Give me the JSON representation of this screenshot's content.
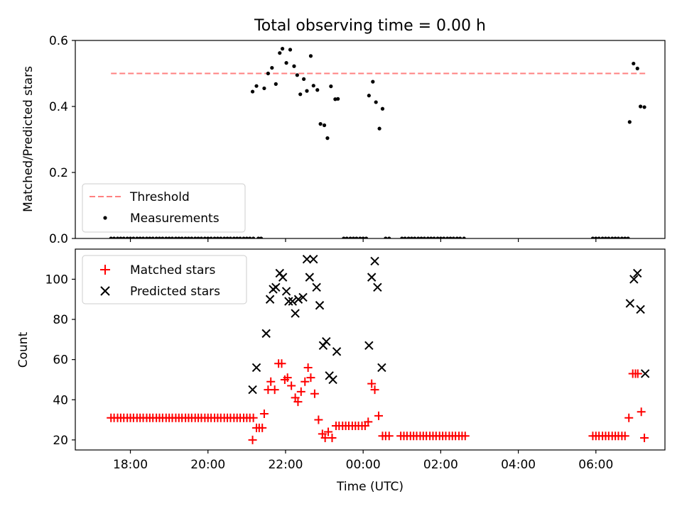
{
  "chart_data": [
    {
      "type": "scatter",
      "title": "Total observing time = 0.00 h",
      "xlabel": "",
      "ylabel": "Matched/Predicted stars",
      "ylim": [
        0,
        0.6
      ],
      "xlim_hours": [
        16.58,
        31.78
      ],
      "yticks": [
        0.0,
        0.2,
        0.4,
        0.6
      ],
      "ytick_labels": [
        "0.0",
        "0.2",
        "0.4",
        "0.6"
      ],
      "legend_position": "lower-left",
      "threshold": {
        "name": "Threshold",
        "value": 0.5,
        "x_range_hours": [
          17.5,
          31.27
        ],
        "color": "#ff8080"
      },
      "series": [
        {
          "name": "Measurements",
          "color": "#000000",
          "marker": "dot",
          "points": [
            [
              21.15,
              0.445
            ],
            [
              21.25,
              0.462
            ],
            [
              21.45,
              0.455
            ],
            [
              21.55,
              0.5
            ],
            [
              21.65,
              0.517
            ],
            [
              21.75,
              0.468
            ],
            [
              21.85,
              0.562
            ],
            [
              21.92,
              0.575
            ],
            [
              22.02,
              0.532
            ],
            [
              22.12,
              0.572
            ],
            [
              22.22,
              0.522
            ],
            [
              22.3,
              0.495
            ],
            [
              22.38,
              0.437
            ],
            [
              22.47,
              0.483
            ],
            [
              22.55,
              0.447
            ],
            [
              22.65,
              0.553
            ],
            [
              22.72,
              0.463
            ],
            [
              22.82,
              0.45
            ],
            [
              22.9,
              0.347
            ],
            [
              23.0,
              0.343
            ],
            [
              23.08,
              0.304
            ],
            [
              23.17,
              0.461
            ],
            [
              23.28,
              0.422
            ],
            [
              23.35,
              0.423
            ],
            [
              24.15,
              0.433
            ],
            [
              24.25,
              0.475
            ],
            [
              24.33,
              0.413
            ],
            [
              24.42,
              0.333
            ],
            [
              24.5,
              0.393
            ],
            [
              30.87,
              0.353
            ],
            [
              30.97,
              0.53
            ],
            [
              31.07,
              0.515
            ],
            [
              31.15,
              0.4
            ],
            [
              31.25,
              0.398
            ]
          ],
          "zero_points_hours": [
            17.5,
            17.58,
            17.67,
            17.75,
            17.83,
            17.92,
            18.0,
            18.08,
            18.17,
            18.25,
            18.33,
            18.42,
            18.5,
            18.58,
            18.67,
            18.75,
            18.83,
            18.92,
            19.0,
            19.08,
            19.17,
            19.25,
            19.33,
            19.42,
            19.5,
            19.58,
            19.67,
            19.75,
            19.83,
            19.92,
            20.0,
            20.08,
            20.17,
            20.25,
            20.33,
            20.42,
            20.5,
            20.58,
            20.67,
            20.75,
            20.83,
            20.92,
            21.0,
            21.08,
            21.17,
            21.3,
            21.37,
            23.5,
            23.58,
            23.67,
            23.75,
            23.83,
            23.92,
            24.0,
            24.08,
            24.58,
            24.67,
            25.0,
            25.08,
            25.17,
            25.25,
            25.33,
            25.42,
            25.5,
            25.58,
            25.67,
            25.75,
            25.83,
            25.92,
            26.0,
            26.08,
            26.17,
            26.25,
            26.33,
            26.42,
            26.5,
            26.6,
            29.92,
            30.0,
            30.08,
            30.17,
            30.25,
            30.33,
            30.42,
            30.5,
            30.58,
            30.67,
            30.75,
            30.83
          ]
        }
      ]
    },
    {
      "type": "scatter",
      "title": "",
      "xlabel": "Time (UTC)",
      "ylabel": "Count",
      "ylim": [
        15,
        115
      ],
      "xlim_hours": [
        16.58,
        31.78
      ],
      "yticks": [
        20,
        40,
        60,
        80,
        100
      ],
      "ytick_labels": [
        "20",
        "40",
        "60",
        "80",
        "100"
      ],
      "xticks_hours": [
        18,
        20,
        22,
        24,
        26,
        28,
        30
      ],
      "xtick_labels": [
        "18:00",
        "20:00",
        "22:00",
        "00:00",
        "02:00",
        "04:00",
        "06:00"
      ],
      "legend_position": "upper-left",
      "series": [
        {
          "name": "Matched stars",
          "color": "#ff0000",
          "marker": "plus",
          "points": [
            [
              17.5,
              31
            ],
            [
              17.58,
              31
            ],
            [
              17.67,
              31
            ],
            [
              17.75,
              31
            ],
            [
              17.83,
              31
            ],
            [
              17.92,
              31
            ],
            [
              18.0,
              31
            ],
            [
              18.08,
              31
            ],
            [
              18.17,
              31
            ],
            [
              18.25,
              31
            ],
            [
              18.33,
              31
            ],
            [
              18.42,
              31
            ],
            [
              18.5,
              31
            ],
            [
              18.58,
              31
            ],
            [
              18.67,
              31
            ],
            [
              18.75,
              31
            ],
            [
              18.83,
              31
            ],
            [
              18.92,
              31
            ],
            [
              19.0,
              31
            ],
            [
              19.08,
              31
            ],
            [
              19.17,
              31
            ],
            [
              19.25,
              31
            ],
            [
              19.33,
              31
            ],
            [
              19.42,
              31
            ],
            [
              19.5,
              31
            ],
            [
              19.58,
              31
            ],
            [
              19.67,
              31
            ],
            [
              19.75,
              31
            ],
            [
              19.83,
              31
            ],
            [
              19.92,
              31
            ],
            [
              20.0,
              31
            ],
            [
              20.08,
              31
            ],
            [
              20.17,
              31
            ],
            [
              20.25,
              31
            ],
            [
              20.33,
              31
            ],
            [
              20.42,
              31
            ],
            [
              20.5,
              31
            ],
            [
              20.58,
              31
            ],
            [
              20.67,
              31
            ],
            [
              20.75,
              31
            ],
            [
              20.83,
              31
            ],
            [
              20.92,
              31
            ],
            [
              21.0,
              31
            ],
            [
              21.08,
              31
            ],
            [
              21.17,
              31
            ],
            [
              21.15,
              20
            ],
            [
              21.25,
              26
            ],
            [
              21.32,
              26
            ],
            [
              21.4,
              26
            ],
            [
              21.45,
              33
            ],
            [
              21.55,
              45
            ],
            [
              21.62,
              49
            ],
            [
              21.72,
              45
            ],
            [
              21.82,
              58
            ],
            [
              21.9,
              58
            ],
            [
              21.98,
              50
            ],
            [
              22.05,
              51
            ],
            [
              22.15,
              47
            ],
            [
              22.25,
              41
            ],
            [
              22.32,
              39
            ],
            [
              22.4,
              44
            ],
            [
              22.5,
              49
            ],
            [
              22.58,
              56
            ],
            [
              22.65,
              51
            ],
            [
              22.75,
              43
            ],
            [
              22.85,
              30
            ],
            [
              22.95,
              23
            ],
            [
              23.02,
              21
            ],
            [
              23.1,
              24
            ],
            [
              23.2,
              21
            ],
            [
              23.3,
              27
            ],
            [
              23.38,
              27
            ],
            [
              23.47,
              27
            ],
            [
              23.55,
              27
            ],
            [
              23.63,
              27
            ],
            [
              23.72,
              27
            ],
            [
              23.8,
              27
            ],
            [
              23.88,
              27
            ],
            [
              23.97,
              27
            ],
            [
              24.05,
              27
            ],
            [
              24.13,
              29
            ],
            [
              24.22,
              48
            ],
            [
              24.3,
              45
            ],
            [
              24.4,
              32
            ],
            [
              24.5,
              22
            ],
            [
              24.58,
              22
            ],
            [
              24.67,
              22
            ],
            [
              24.97,
              22
            ],
            [
              25.05,
              22
            ],
            [
              25.13,
              22
            ],
            [
              25.22,
              22
            ],
            [
              25.3,
              22
            ],
            [
              25.38,
              22
            ],
            [
              25.47,
              22
            ],
            [
              25.55,
              22
            ],
            [
              25.63,
              22
            ],
            [
              25.72,
              22
            ],
            [
              25.8,
              22
            ],
            [
              25.88,
              22
            ],
            [
              25.97,
              22
            ],
            [
              26.05,
              22
            ],
            [
              26.13,
              22
            ],
            [
              26.22,
              22
            ],
            [
              26.3,
              22
            ],
            [
              26.38,
              22
            ],
            [
              26.47,
              22
            ],
            [
              26.55,
              22
            ],
            [
              26.63,
              22
            ],
            [
              29.92,
              22
            ],
            [
              30.0,
              22
            ],
            [
              30.08,
              22
            ],
            [
              30.17,
              22
            ],
            [
              30.25,
              22
            ],
            [
              30.33,
              22
            ],
            [
              30.42,
              22
            ],
            [
              30.5,
              22
            ],
            [
              30.58,
              22
            ],
            [
              30.67,
              22
            ],
            [
              30.75,
              22
            ],
            [
              30.85,
              31
            ],
            [
              30.95,
              53
            ],
            [
              31.02,
              53
            ],
            [
              31.08,
              53
            ],
            [
              31.17,
              34
            ],
            [
              31.25,
              21
            ]
          ]
        },
        {
          "name": "Predicted stars",
          "color": "#000000",
          "marker": "x",
          "points": [
            [
              21.15,
              45
            ],
            [
              21.25,
              56
            ],
            [
              21.5,
              73
            ],
            [
              21.6,
              90
            ],
            [
              21.68,
              95
            ],
            [
              21.75,
              96
            ],
            [
              21.85,
              103
            ],
            [
              21.93,
              101
            ],
            [
              22.02,
              94
            ],
            [
              22.08,
              89
            ],
            [
              22.18,
              89
            ],
            [
              22.25,
              83
            ],
            [
              22.33,
              90
            ],
            [
              22.45,
              91
            ],
            [
              22.55,
              110
            ],
            [
              22.62,
              101
            ],
            [
              22.72,
              110
            ],
            [
              22.8,
              96
            ],
            [
              22.88,
              87
            ],
            [
              22.97,
              67
            ],
            [
              23.05,
              69
            ],
            [
              23.13,
              52
            ],
            [
              23.22,
              50
            ],
            [
              23.32,
              64
            ],
            [
              24.15,
              67
            ],
            [
              24.22,
              101
            ],
            [
              24.3,
              109
            ],
            [
              24.37,
              96
            ],
            [
              24.48,
              56
            ],
            [
              30.88,
              88
            ],
            [
              30.98,
              100
            ],
            [
              31.07,
              103
            ],
            [
              31.15,
              85
            ],
            [
              31.27,
              53
            ]
          ]
        }
      ]
    }
  ]
}
